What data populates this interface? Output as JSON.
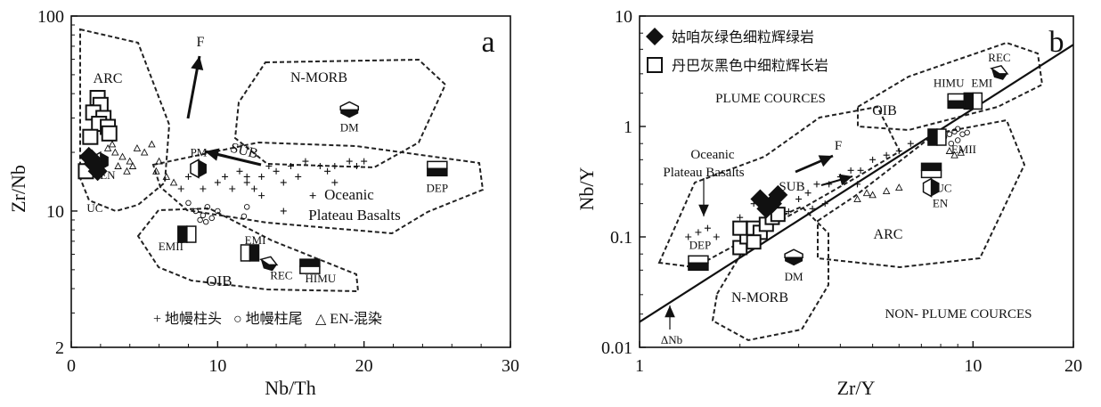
{
  "chart_data": [
    {
      "type": "scatter",
      "panel_label": "a",
      "xlabel": "Nb/Th",
      "ylabel": "Zr/Nb",
      "xlim": [
        0,
        30
      ],
      "ylim": [
        2,
        100
      ],
      "yscale": "log",
      "xticks": [
        "0",
        "10",
        "20",
        "30"
      ],
      "yticks": [
        "2",
        "10",
        "100"
      ],
      "fields": [
        "ARC",
        "N-MORB",
        "Oceanic",
        "Plateau Basalts",
        "OIB"
      ],
      "end_members": [
        {
          "label": "DM",
          "x": 19.0,
          "y": 33
        },
        {
          "label": "PM",
          "x": 8.7,
          "y": 16.5
        },
        {
          "label": "DEP",
          "x": 25.0,
          "y": 16.5
        },
        {
          "label": "EN",
          "x": 2.0,
          "y": 18
        },
        {
          "label": "UC",
          "x": 1.0,
          "y": 14
        },
        {
          "label": "EMI",
          "x": 12.2,
          "y": 6.1
        },
        {
          "label": "EMII",
          "x": 7.9,
          "y": 7.6
        },
        {
          "label": "REC",
          "x": 13.5,
          "y": 5.3
        },
        {
          "label": "HIMU",
          "x": 16.3,
          "y": 5.2
        }
      ],
      "vectors": [
        "F",
        "SUB"
      ],
      "legend": [
        "+ 地幔柱头",
        "○ 地幔柱尾",
        "△ EN-混染"
      ],
      "series": [
        {
          "name": "姑咱灰绿色细粒辉绿岩",
          "points": [
            [
              1.2,
              19
            ],
            [
              1.5,
              17.5
            ],
            [
              1.8,
              16
            ],
            [
              1.4,
              18.5
            ]
          ]
        },
        {
          "name": "丹巴灰黑色中细粒辉长岩",
          "points": [
            [
              1.8,
              38
            ],
            [
              2.0,
              35
            ],
            [
              1.5,
              32
            ],
            [
              2.2,
              30
            ],
            [
              1.9,
              28
            ],
            [
              2.5,
              27
            ],
            [
              1.3,
              24
            ],
            [
              2.6,
              25
            ],
            [
              1.0,
              16
            ]
          ]
        },
        {
          "name": "地幔柱头",
          "points": [
            [
              7.5,
              13
            ],
            [
              8.0,
              15
            ],
            [
              9.0,
              13
            ],
            [
              10.0,
              14
            ],
            [
              10.5,
              15
            ],
            [
              11.0,
              13
            ],
            [
              11.5,
              16
            ],
            [
              12.0,
              14
            ],
            [
              12.5,
              13
            ],
            [
              13.0,
              15
            ],
            [
              13.5,
              17
            ],
            [
              14.0,
              16
            ],
            [
              14.5,
              14
            ],
            [
              15.0,
              17
            ],
            [
              15.5,
              15
            ],
            [
              16.0,
              18
            ],
            [
              17.0,
              17
            ],
            [
              17.5,
              16
            ],
            [
              18.0,
              17
            ],
            [
              19.0,
              18
            ],
            [
              19.5,
              17
            ],
            [
              20.0,
              18
            ],
            [
              12.0,
              15
            ],
            [
              13.0,
              12
            ],
            [
              14.5,
              10
            ],
            [
              16.5,
              12
            ],
            [
              18.0,
              14
            ]
          ]
        },
        {
          "name": "地幔柱尾",
          "points": [
            [
              8.5,
              10
            ],
            [
              9.0,
              9.5
            ],
            [
              9.3,
              10.5
            ],
            [
              9.6,
              9.2
            ],
            [
              10.0,
              10
            ],
            [
              8.8,
              9
            ],
            [
              9.2,
              8.8
            ],
            [
              12.0,
              10.5
            ],
            [
              11.8,
              9.4
            ],
            [
              8.0,
              11
            ]
          ]
        },
        {
          "name": "EN-混染",
          "points": [
            [
              2.5,
              21
            ],
            [
              3.0,
              20
            ],
            [
              3.5,
              19
            ],
            [
              4.0,
              18
            ],
            [
              4.2,
              17
            ],
            [
              5.0,
              20
            ],
            [
              5.5,
              22
            ],
            [
              6.0,
              18
            ],
            [
              6.5,
              15
            ],
            [
              7.0,
              14
            ],
            [
              5.8,
              16
            ],
            [
              3.2,
              17
            ],
            [
              4.5,
              21
            ],
            [
              2.8,
              22
            ],
            [
              3.8,
              16
            ]
          ]
        }
      ]
    },
    {
      "type": "scatter",
      "panel_label": "b",
      "xlabel": "Zr/Y",
      "ylabel": "Nb/Y",
      "xlim": [
        1,
        20
      ],
      "ylim": [
        0.01,
        10
      ],
      "xscale": "log",
      "yscale": "log",
      "xticks": [
        "1",
        "10",
        "20"
      ],
      "yticks": [
        "0.01",
        "0.1",
        "1",
        "10"
      ],
      "fields": [
        "OIB",
        "Oceanic",
        "Plateau Basalts",
        "ARC",
        "N-MORB"
      ],
      "regions": [
        "PLUME COURCES",
        "NON- PLUME COURCES"
      ],
      "reference_line": {
        "from": [
          1.0,
          0.017
        ],
        "to": [
          20,
          5.5
        ]
      },
      "end_members": [
        {
          "label": "REC",
          "x": 12.0,
          "y": 3.0
        },
        {
          "label": "HIMU",
          "x": 9.0,
          "y": 1.7
        },
        {
          "label": "EMI",
          "x": 10.0,
          "y": 1.7
        },
        {
          "label": "EMII",
          "x": 7.8,
          "y": 0.8
        },
        {
          "label": "UC",
          "x": 7.5,
          "y": 0.4
        },
        {
          "label": "EN",
          "x": 7.5,
          "y": 0.28
        },
        {
          "label": "DEP",
          "x": 1.5,
          "y": 0.058
        },
        {
          "label": "DM",
          "x": 2.9,
          "y": 0.065
        }
      ],
      "vectors": [
        "F",
        "SUB",
        "ΔNb"
      ],
      "legend": [
        "姑咱灰绿色细粒辉绿岩",
        "丹巴灰黑色中细粒辉长岩"
      ],
      "series": [
        {
          "name": "姑咱灰绿色细粒辉绿岩",
          "points": [
            [
              2.3,
              0.22
            ],
            [
              2.5,
              0.2
            ],
            [
              2.6,
              0.24
            ],
            [
              2.4,
              0.18
            ]
          ]
        },
        {
          "name": "丹巴灰黑色中细粒辉长岩",
          "points": [
            [
              2.0,
              0.08
            ],
            [
              2.1,
              0.1
            ],
            [
              2.2,
              0.12
            ],
            [
              2.3,
              0.11
            ],
            [
              2.4,
              0.13
            ],
            [
              2.5,
              0.15
            ],
            [
              2.6,
              0.16
            ],
            [
              2.0,
              0.12
            ],
            [
              2.2,
              0.09
            ]
          ]
        },
        {
          "name": "地幔柱头",
          "points": [
            [
              1.4,
              0.1
            ],
            [
              1.5,
              0.11
            ],
            [
              1.6,
              0.12
            ],
            [
              1.7,
              0.1
            ],
            [
              2.0,
              0.15
            ],
            [
              2.2,
              0.2
            ],
            [
              2.6,
              0.2
            ],
            [
              2.8,
              0.17
            ],
            [
              3.0,
              0.22
            ],
            [
              3.2,
              0.25
            ],
            [
              3.4,
              0.3
            ],
            [
              3.7,
              0.3
            ],
            [
              4.0,
              0.35
            ],
            [
              4.3,
              0.4
            ],
            [
              4.6,
              0.4
            ],
            [
              5.0,
              0.5
            ],
            [
              5.5,
              0.55
            ],
            [
              6.0,
              0.6
            ],
            [
              6.5,
              0.7
            ],
            [
              3.6,
              0.2
            ],
            [
              4.5,
              0.3
            ],
            [
              3.3,
              0.18
            ]
          ]
        },
        {
          "name": "地幔柱尾",
          "points": [
            [
              8.2,
              0.8
            ],
            [
              8.5,
              0.85
            ],
            [
              8.8,
              0.9
            ],
            [
              9.0,
              0.75
            ],
            [
              9.3,
              0.85
            ],
            [
              9.6,
              0.88
            ],
            [
              8.6,
              0.7
            ],
            [
              9.0,
              0.95
            ]
          ]
        },
        {
          "name": "EN-混染",
          "points": [
            [
              4.5,
              0.22
            ],
            [
              4.8,
              0.25
            ],
            [
              5.0,
              0.24
            ],
            [
              5.5,
              0.26
            ],
            [
              6.0,
              0.28
            ],
            [
              8.5,
              0.6
            ],
            [
              8.8,
              0.55
            ],
            [
              9.2,
              0.58
            ]
          ]
        }
      ]
    }
  ]
}
